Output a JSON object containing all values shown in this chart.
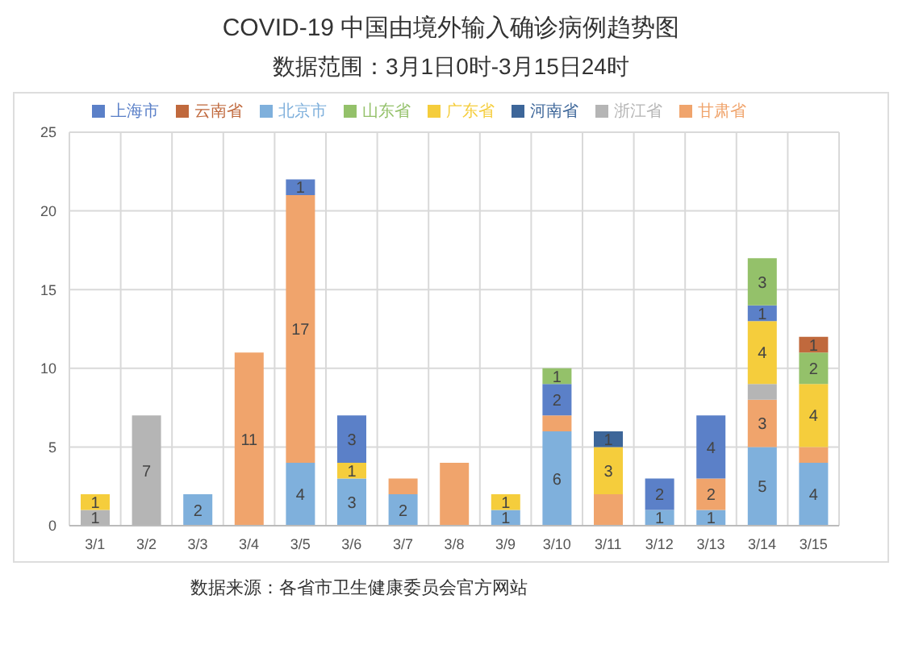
{
  "chart_data": {
    "type": "bar",
    "title": "COVID-19 中国由境外输入确诊病例趋势图",
    "subtitle": "数据范围：3月1日0时-3月15日24时",
    "categories": [
      "3/1",
      "3/2",
      "3/3",
      "3/4",
      "3/5",
      "3/6",
      "3/7",
      "3/8",
      "3/9",
      "3/10",
      "3/11",
      "3/12",
      "3/13",
      "3/14",
      "3/15"
    ],
    "stacked": true,
    "ylim": [
      0,
      25
    ],
    "yticks": [
      0,
      5,
      10,
      15,
      20,
      25
    ],
    "grid": true,
    "legend": "top",
    "series": [
      {
        "name": "北京市",
        "color": "#7fb0dc",
        "values": [
          0,
          0,
          2,
          0,
          4,
          3,
          2,
          0,
          1,
          6,
          0,
          1,
          1,
          5,
          4
        ],
        "value_labels": [
          null,
          null,
          "2",
          null,
          "4",
          "3",
          "2",
          null,
          "1",
          "6",
          null,
          "1",
          "1",
          "5",
          "4"
        ]
      },
      {
        "name": "甘肃省",
        "color": "#f0a46c",
        "values": [
          0,
          0,
          0,
          11,
          17,
          0,
          1,
          4,
          0,
          1,
          2,
          0,
          2,
          3,
          1
        ],
        "value_labels": [
          null,
          null,
          null,
          "11",
          "17",
          null,
          null,
          null,
          null,
          null,
          null,
          null,
          "2",
          "3",
          null
        ]
      },
      {
        "name": "浙江省",
        "color": "#b5b5b5",
        "values": [
          1,
          7,
          0,
          0,
          0,
          0,
          0,
          0,
          0,
          0,
          0,
          0,
          0,
          1,
          0
        ],
        "value_labels": [
          "1",
          "7",
          null,
          null,
          null,
          null,
          null,
          null,
          null,
          null,
          null,
          null,
          null,
          null,
          null
        ]
      },
      {
        "name": "广东省",
        "color": "#f5cd3c",
        "values": [
          1,
          0,
          0,
          0,
          0,
          1,
          0,
          0,
          1,
          0,
          3,
          0,
          0,
          4,
          4
        ],
        "value_labels": [
          "1",
          null,
          null,
          null,
          null,
          "1",
          null,
          null,
          "1",
          null,
          "3",
          null,
          null,
          "4",
          "4"
        ]
      },
      {
        "name": "上海市",
        "color": "#5b80c8",
        "values": [
          0,
          0,
          0,
          0,
          1,
          3,
          0,
          0,
          0,
          2,
          0,
          2,
          4,
          1,
          0
        ],
        "value_labels": [
          null,
          null,
          null,
          null,
          "1",
          "3",
          null,
          null,
          null,
          "2",
          null,
          "2",
          "4",
          "1",
          null
        ]
      },
      {
        "name": "山东省",
        "color": "#94c16a",
        "values": [
          0,
          0,
          0,
          0,
          0,
          0,
          0,
          0,
          0,
          1,
          0,
          0,
          0,
          3,
          2
        ],
        "value_labels": [
          null,
          null,
          null,
          null,
          null,
          null,
          null,
          null,
          null,
          "1",
          null,
          null,
          null,
          "3",
          "2"
        ]
      },
      {
        "name": "河南省",
        "color": "#3d6699",
        "values": [
          0,
          0,
          0,
          0,
          0,
          0,
          0,
          0,
          0,
          0,
          1,
          0,
          0,
          0,
          0
        ],
        "value_labels": [
          null,
          null,
          null,
          null,
          null,
          null,
          null,
          null,
          null,
          null,
          "1",
          null,
          null,
          null,
          null
        ]
      },
      {
        "name": "云南省",
        "color": "#c0693d",
        "values": [
          0,
          0,
          0,
          0,
          0,
          0,
          0,
          0,
          0,
          0,
          0,
          0,
          0,
          0,
          1
        ],
        "value_labels": [
          null,
          null,
          null,
          null,
          null,
          null,
          null,
          null,
          null,
          null,
          null,
          null,
          null,
          null,
          "1"
        ]
      }
    ],
    "annotations": [
      "数据来源：各省市卫生健康委员会官方网站"
    ]
  }
}
